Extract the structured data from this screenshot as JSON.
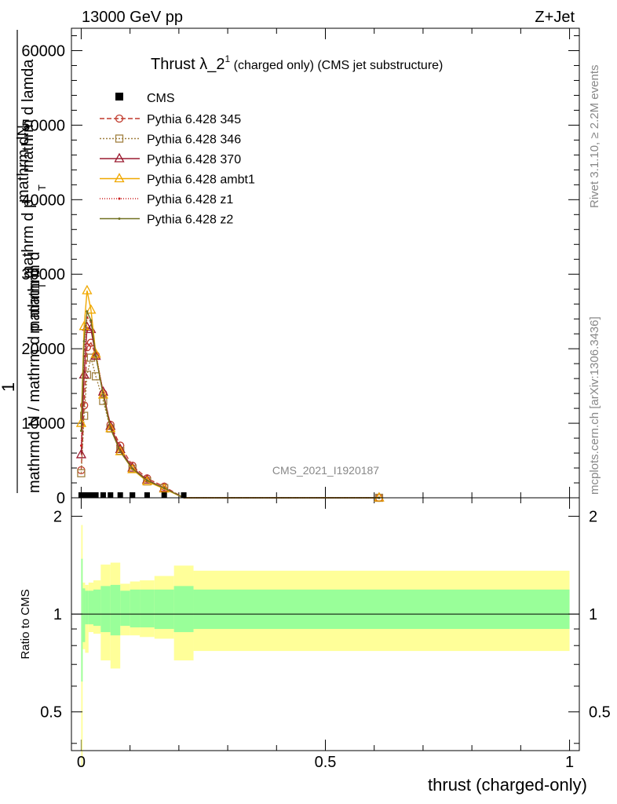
{
  "header": {
    "left": "13000 GeV pp",
    "right": "Z+Jet"
  },
  "side": {
    "rivet": "Rivet 3.1.10, ≥ 2.2M events",
    "mcplots": "mcplots.cern.ch [arXiv:1306.3436]"
  },
  "chart_data": {
    "type": "line",
    "title_main": "Thrust λ_2",
    "title_sup": "1",
    "title_rest": " (charged only) (CMS jet substructure)",
    "watermark": "CMS_2021_I1920187",
    "ylabel_parts": [
      "1",
      "mathrmd N / mathrm d p",
      "T",
      "mathrm d",
      "mathrm d lamda",
      "mathrm d",
      "mathrm d p",
      "T",
      "mathrm dN"
    ],
    "xlabel": "thrust (charged-only)",
    "ratio_ylabel": "Ratio to CMS",
    "xlim": [
      -0.02,
      1.02
    ],
    "ylim": [
      0,
      63000
    ],
    "ratio_ylim": [
      0.38,
      2.28
    ],
    "x_ticks": [
      "0",
      "0.5",
      "1"
    ],
    "y_ticks": [
      "0",
      "10000",
      "20000",
      "30000",
      "40000",
      "50000",
      "60000"
    ],
    "ratio_ticks": [
      "0.5",
      "1",
      "2"
    ],
    "data_x": [
      0.0,
      0.006,
      0.012,
      0.02,
      0.03,
      0.045,
      0.06,
      0.08,
      0.105,
      0.135,
      0.17,
      0.21,
      0.61
    ],
    "cms_values": [
      0,
      0,
      0,
      0,
      0,
      0,
      0,
      0,
      0,
      0,
      0,
      0,
      0
    ],
    "series": [
      {
        "name": "Pythia 6.428 345",
        "color": "#c0392b",
        "marker": "circle",
        "dash": "6,3",
        "values": [
          3700,
          12400,
          20200,
          20800,
          19100,
          14000,
          9800,
          7000,
          4300,
          2600,
          1500,
          0,
          0
        ]
      },
      {
        "name": "Pythia 6.428 346",
        "color": "#a08040",
        "marker": "square",
        "dash": "2,2",
        "values": [
          3300,
          11000,
          16500,
          18800,
          16300,
          13000,
          9300,
          6300,
          3900,
          2200,
          1300,
          0,
          0
        ]
      },
      {
        "name": "Pythia 6.428 370",
        "color": "#9b1b30",
        "marker": "triangle",
        "dash": "",
        "values": [
          5800,
          16500,
          22900,
          22600,
          19000,
          14200,
          9600,
          6500,
          4000,
          2400,
          1300,
          0,
          0
        ]
      },
      {
        "name": "Pythia 6.428 ambt1",
        "color": "#f0a800",
        "marker": "triangle",
        "dash": "",
        "values": [
          10000,
          23000,
          27800,
          25200,
          19300,
          13800,
          9300,
          6200,
          3800,
          2200,
          1200,
          0,
          0
        ]
      },
      {
        "name": "Pythia 6.428 z1",
        "color": "#cc1f1f",
        "marker": "dot",
        "dash": "1,2",
        "values": [
          7000,
          19000,
          24200,
          23600,
          19400,
          14100,
          9500,
          6300,
          3900,
          2300,
          1300,
          0,
          0
        ]
      },
      {
        "name": "Pythia 6.428 z2",
        "color": "#707020",
        "marker": "dot",
        "dash": "",
        "values": [
          9000,
          21000,
          25000,
          23800,
          19000,
          13800,
          9300,
          6200,
          3900,
          2300,
          1300,
          0,
          0
        ]
      }
    ],
    "cms_legend": "CMS",
    "ratio_bands": {
      "x_edges": [
        0.0,
        0.003,
        0.008,
        0.015,
        0.025,
        0.04,
        0.06,
        0.08,
        0.1,
        0.12,
        0.15,
        0.19,
        0.23,
        1.0
      ],
      "green_lo": [
        0.62,
        0.82,
        0.93,
        0.93,
        0.92,
        0.88,
        0.86,
        0.92,
        0.91,
        0.91,
        0.9,
        0.88,
        0.9
      ],
      "green_hi": [
        1.48,
        1.2,
        1.18,
        1.18,
        1.19,
        1.22,
        1.23,
        1.18,
        1.19,
        1.19,
        1.19,
        1.22,
        1.19
      ],
      "yellow_lo": [
        0.34,
        0.78,
        0.76,
        0.88,
        0.87,
        0.72,
        0.68,
        0.86,
        0.86,
        0.85,
        0.84,
        0.72,
        0.77
      ],
      "yellow_hi": [
        1.88,
        1.25,
        1.23,
        1.25,
        1.27,
        1.42,
        1.44,
        1.24,
        1.26,
        1.27,
        1.31,
        1.41,
        1.36
      ],
      "green_color": "#99ff99",
      "yellow_color": "#ffff99"
    }
  }
}
